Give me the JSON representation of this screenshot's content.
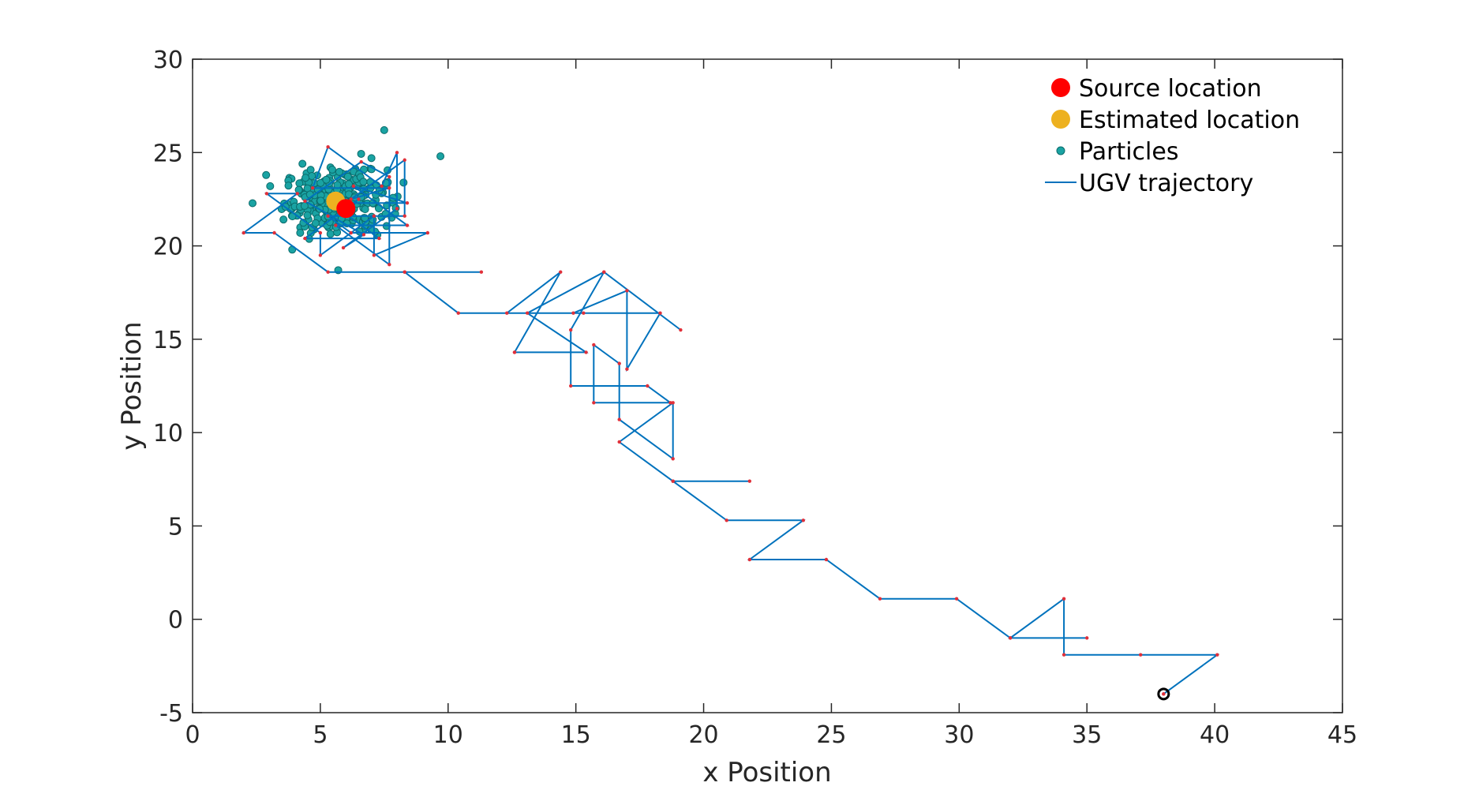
{
  "chart_data": {
    "type": "line",
    "title": "",
    "xlabel": "x Position",
    "ylabel": "y Position",
    "xlim": [
      0,
      45
    ],
    "ylim": [
      -5,
      30
    ],
    "xticks": [
      0,
      5,
      10,
      15,
      20,
      25,
      30,
      35,
      40,
      45
    ],
    "yticks": [
      -5,
      0,
      5,
      10,
      15,
      20,
      25,
      30
    ],
    "grid": false,
    "legend_position": "top-right",
    "colors": {
      "source": "#ff0000",
      "estimated": "#edb120",
      "particle_fill": "#1aa3a3",
      "particle_edge": "#0b6b6b",
      "trajectory": "#0072bd",
      "waypoint": "#e0303a",
      "start_marker": "#000000",
      "axes": "#262626"
    },
    "legend": [
      {
        "label": "Source location",
        "marker": "big-dot",
        "color": "#ff0000"
      },
      {
        "label": "Estimated location",
        "marker": "big-dot",
        "color": "#edb120"
      },
      {
        "label": "Particles",
        "marker": "small-dot",
        "color": "#1aa3a3"
      },
      {
        "label": "UGV trajectory",
        "marker": "line",
        "color": "#0072bd"
      }
    ],
    "source_location": {
      "x": 6.0,
      "y": 22.0
    },
    "estimated_location": {
      "x": 5.6,
      "y": 22.4
    },
    "start_point": {
      "x": 38.0,
      "y": -4.0
    },
    "trajectory": [
      {
        "x": 38.0,
        "y": -4.0
      },
      {
        "x": 40.1,
        "y": -1.9
      },
      {
        "x": 37.1,
        "y": -1.9
      },
      {
        "x": 34.1,
        "y": -1.9
      },
      {
        "x": 34.1,
        "y": 1.1
      },
      {
        "x": 32.0,
        "y": -1.0
      },
      {
        "x": 35.0,
        "y": -1.0
      },
      {
        "x": 32.0,
        "y": -1.0
      },
      {
        "x": 29.9,
        "y": 1.1
      },
      {
        "x": 26.9,
        "y": 1.1
      },
      {
        "x": 24.8,
        "y": 3.2
      },
      {
        "x": 21.8,
        "y": 3.2
      },
      {
        "x": 23.9,
        "y": 5.3
      },
      {
        "x": 20.9,
        "y": 5.3
      },
      {
        "x": 18.8,
        "y": 7.4
      },
      {
        "x": 21.8,
        "y": 7.4
      },
      {
        "x": 18.8,
        "y": 7.4
      },
      {
        "x": 16.7,
        "y": 9.5
      },
      {
        "x": 18.8,
        "y": 11.6
      },
      {
        "x": 18.8,
        "y": 8.6
      },
      {
        "x": 16.7,
        "y": 10.7
      },
      {
        "x": 16.7,
        "y": 13.7
      },
      {
        "x": 15.7,
        "y": 14.7
      },
      {
        "x": 15.7,
        "y": 11.6
      },
      {
        "x": 18.7,
        "y": 11.6
      },
      {
        "x": 17.8,
        "y": 12.5
      },
      {
        "x": 14.8,
        "y": 12.5
      },
      {
        "x": 14.8,
        "y": 15.5
      },
      {
        "x": 16.1,
        "y": 18.6
      },
      {
        "x": 19.1,
        "y": 15.5
      },
      {
        "x": 16.1,
        "y": 18.6
      },
      {
        "x": 13.1,
        "y": 16.4
      },
      {
        "x": 15.4,
        "y": 14.3
      },
      {
        "x": 12.6,
        "y": 14.3
      },
      {
        "x": 12.6,
        "y": 14.3
      },
      {
        "x": 14.4,
        "y": 18.6
      },
      {
        "x": 12.3,
        "y": 16.4
      },
      {
        "x": 15.3,
        "y": 16.4
      },
      {
        "x": 18.3,
        "y": 16.4
      },
      {
        "x": 17.0,
        "y": 13.4
      },
      {
        "x": 17.0,
        "y": 17.6
      },
      {
        "x": 14.9,
        "y": 16.4
      },
      {
        "x": 10.4,
        "y": 16.4
      },
      {
        "x": 8.3,
        "y": 18.6
      },
      {
        "x": 11.3,
        "y": 18.6
      },
      {
        "x": 8.3,
        "y": 18.6
      },
      {
        "x": 5.3,
        "y": 18.6
      },
      {
        "x": 3.2,
        "y": 20.7
      },
      {
        "x": 2.0,
        "y": 20.7
      },
      {
        "x": 4.1,
        "y": 22.8
      },
      {
        "x": 2.9,
        "y": 22.8
      },
      {
        "x": 5.0,
        "y": 20.7
      },
      {
        "x": 5.0,
        "y": 19.5
      },
      {
        "x": 7.1,
        "y": 21.6
      },
      {
        "x": 7.1,
        "y": 19.5
      },
      {
        "x": 9.2,
        "y": 20.7
      },
      {
        "x": 6.2,
        "y": 20.7
      },
      {
        "x": 5.3,
        "y": 21.6
      },
      {
        "x": 8.3,
        "y": 21.6
      },
      {
        "x": 8.3,
        "y": 24.6
      },
      {
        "x": 6.2,
        "y": 22.5
      },
      {
        "x": 7.7,
        "y": 23.1
      },
      {
        "x": 4.7,
        "y": 23.1
      },
      {
        "x": 5.3,
        "y": 25.3
      },
      {
        "x": 7.4,
        "y": 23.2
      },
      {
        "x": 8.0,
        "y": 25.0
      },
      {
        "x": 8.0,
        "y": 22.0
      },
      {
        "x": 5.9,
        "y": 19.9
      },
      {
        "x": 6.7,
        "y": 20.6
      },
      {
        "x": 4.4,
        "y": 22.4
      },
      {
        "x": 6.6,
        "y": 24.5
      },
      {
        "x": 7.7,
        "y": 23.7
      },
      {
        "x": 7.7,
        "y": 19.0
      },
      {
        "x": 5.6,
        "y": 21.1
      },
      {
        "x": 8.4,
        "y": 21.1
      },
      {
        "x": 6.3,
        "y": 23.2
      },
      {
        "x": 8.4,
        "y": 22.3
      },
      {
        "x": 5.4,
        "y": 22.3
      },
      {
        "x": 7.3,
        "y": 20.4
      },
      {
        "x": 4.4,
        "y": 20.4
      },
      {
        "x": 6.5,
        "y": 22.5
      },
      {
        "x": 6.0,
        "y": 22.0
      }
    ]
  }
}
